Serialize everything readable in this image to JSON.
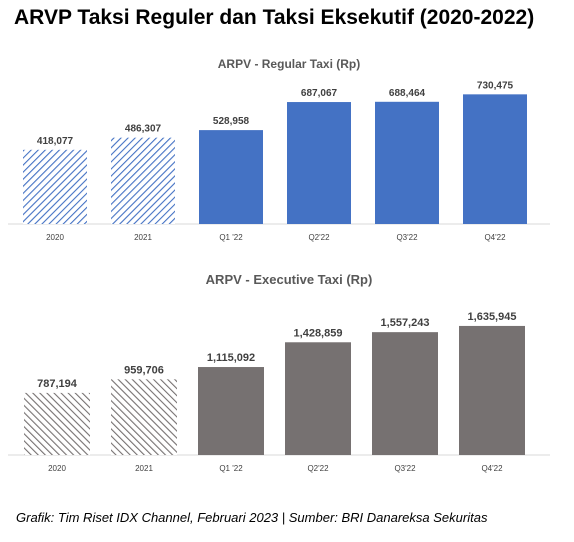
{
  "page": {
    "title": "ARVP Taksi Reguler dan Taksi Eksekutif (2020-2022)",
    "footer": "Grafik: Tim Riset IDX Channel, Februari 2023 | Sumber: BRI Danareksa Sekuritas"
  },
  "chart_data": [
    {
      "type": "bar",
      "title": "ARPV - Regular Taxi (Rp)",
      "categories": [
        "2020",
        "2021",
        "Q1 '22",
        "Q2'22",
        "Q3'22",
        "Q4'22"
      ],
      "values": [
        418077,
        486307,
        528958,
        687067,
        688464,
        730475
      ],
      "value_labels": [
        "418,077",
        "486,307",
        "528,958",
        "687,067",
        "688,464",
        "730,475"
      ],
      "bar_styles": [
        "hatched",
        "hatched",
        "solid",
        "solid",
        "solid",
        "solid"
      ],
      "color": "#4472c4",
      "ylim": [
        0,
        800000
      ],
      "grid": false,
      "legend": "none"
    },
    {
      "type": "bar",
      "title": "ARPV - Executive Taxi (Rp)",
      "categories": [
        "2020",
        "2021",
        "Q1 '22",
        "Q2'22",
        "Q3'22",
        "Q4'22"
      ],
      "values": [
        787194,
        959706,
        1115092,
        1428859,
        1557243,
        1635945
      ],
      "value_labels": [
        "787,194",
        "959,706",
        "1,115,092",
        "1,428,859",
        "1,557,243",
        "1,635,945"
      ],
      "bar_styles": [
        "hatched",
        "hatched",
        "solid",
        "solid",
        "solid",
        "solid"
      ],
      "color": "#767171",
      "ylim": [
        0,
        1800000
      ],
      "grid": false,
      "legend": "none"
    }
  ]
}
